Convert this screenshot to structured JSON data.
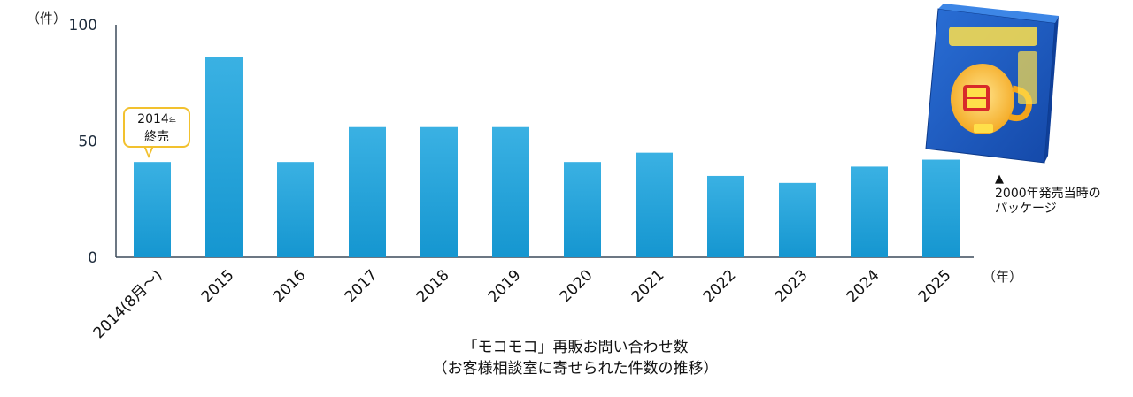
{
  "chart_data": {
    "type": "bar",
    "categories": [
      "2014(8月～)",
      "2015",
      "2016",
      "2017",
      "2018",
      "2019",
      "2020",
      "2021",
      "2022",
      "2023",
      "2024",
      "2025"
    ],
    "values": [
      41,
      86,
      41,
      56,
      56,
      56,
      41,
      45,
      35,
      32,
      39,
      42
    ],
    "yticks": [
      0,
      50,
      100
    ],
    "ylim": [
      0,
      100
    ],
    "ylabel": "（件）",
    "xlabel": "（年）",
    "title": "「モコモコ」再販お問い合わせ数",
    "subtitle": "（お客様相談室に寄せられた件数の推移）",
    "bar_color": "#2aa6dc",
    "annotation": {
      "category": "2014(8月～)",
      "line1": "2014",
      "line1_small": "年",
      "line2": "終売",
      "border_color": "#f2c12e"
    }
  },
  "side_note": {
    "marker": "▲",
    "line1": "2000年発売当時の",
    "line2": "パッケージ",
    "package_image": "mug-cake-package-image"
  }
}
